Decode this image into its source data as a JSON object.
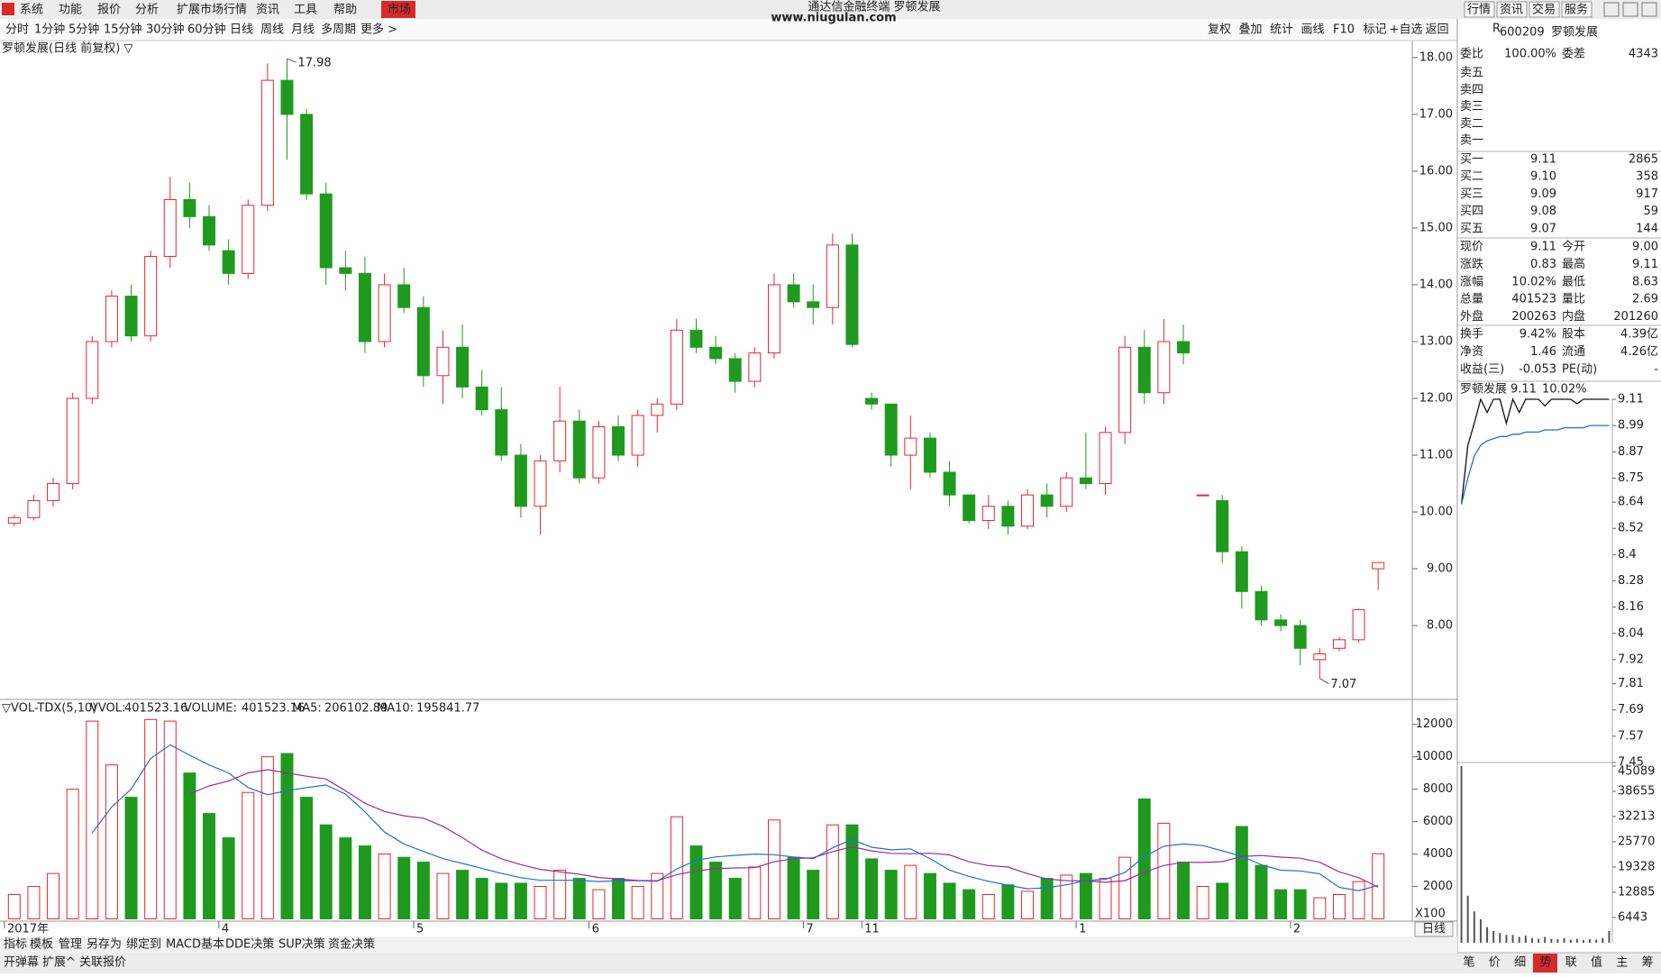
{
  "menu": {
    "items": [
      "系统",
      "功能",
      "报价",
      "分析",
      "扩展市场行情",
      "资讯",
      "工具",
      "帮助"
    ],
    "market": "市场",
    "app_title": "通达信金融终端 罗顿发展",
    "watermark": "www.niugulan.com",
    "right": [
      "行情",
      "资讯",
      "交易",
      "服务"
    ]
  },
  "toolbar": {
    "periods": [
      "分时",
      "1分钟",
      "5分钟",
      "15分钟",
      "30分钟",
      "60分钟",
      "日线",
      "周线",
      "月线",
      "多周期",
      "更多 >"
    ],
    "tools": [
      "复权",
      "叠加",
      "统计",
      "画线",
      "F10",
      "标记",
      "+自选",
      "返回"
    ]
  },
  "chart_data": [
    {
      "type": "candlestick",
      "title": "罗顿发展(日线 前复权) ▽",
      "up_color": "#e8262b",
      "down_color": "#1f9a1f",
      "categories": [
        "2017年",
        null,
        null,
        null,
        null,
        null,
        null,
        null,
        null,
        null,
        null,
        "4",
        null,
        null,
        null,
        null,
        null,
        null,
        null,
        null,
        null,
        "5",
        null,
        null,
        null,
        null,
        null,
        null,
        null,
        null,
        "6",
        null,
        null,
        null,
        null,
        null,
        null,
        null,
        null,
        null,
        null,
        "7",
        null,
        null,
        "11",
        null,
        null,
        null,
        null,
        null,
        null,
        null,
        null,
        null,
        null,
        "1",
        null,
        null,
        null,
        null,
        null,
        null,
        null,
        null,
        null,
        null,
        "2",
        null,
        null,
        null,
        null
      ],
      "candles": [
        [
          9.8,
          9.95,
          9.75,
          9.9
        ],
        [
          9.9,
          10.3,
          9.85,
          10.2
        ],
        [
          10.2,
          10.6,
          10.1,
          10.5
        ],
        [
          10.5,
          12.1,
          10.4,
          12.0
        ],
        [
          12.0,
          13.1,
          11.9,
          13.0
        ],
        [
          13.0,
          13.9,
          12.9,
          13.8
        ],
        [
          13.8,
          14.0,
          13.0,
          13.1
        ],
        [
          13.1,
          14.6,
          13.0,
          14.5
        ],
        [
          14.5,
          15.9,
          14.3,
          15.5
        ],
        [
          15.5,
          15.8,
          15.0,
          15.2
        ],
        [
          15.2,
          15.4,
          14.6,
          14.7
        ],
        [
          14.6,
          14.8,
          14.0,
          14.2
        ],
        [
          14.2,
          15.5,
          14.1,
          15.4
        ],
        [
          15.4,
          17.9,
          15.3,
          17.6
        ],
        [
          17.6,
          17.98,
          16.2,
          17.0
        ],
        [
          17.0,
          17.1,
          15.5,
          15.6
        ],
        [
          15.6,
          15.8,
          14.0,
          14.3
        ],
        [
          14.3,
          14.6,
          13.9,
          14.2
        ],
        [
          14.2,
          14.5,
          12.8,
          13.0
        ],
        [
          13.0,
          14.2,
          12.9,
          14.0
        ],
        [
          14.0,
          14.3,
          13.5,
          13.6
        ],
        [
          13.6,
          13.8,
          12.2,
          12.4
        ],
        [
          12.4,
          13.2,
          11.9,
          12.9
        ],
        [
          12.9,
          13.3,
          12.0,
          12.2
        ],
        [
          12.2,
          12.5,
          11.7,
          11.8
        ],
        [
          11.8,
          12.2,
          10.9,
          11.0
        ],
        [
          11.0,
          11.2,
          9.9,
          10.1
        ],
        [
          10.1,
          11.0,
          9.6,
          10.9
        ],
        [
          10.9,
          12.2,
          10.7,
          11.6
        ],
        [
          11.6,
          11.8,
          10.5,
          10.6
        ],
        [
          10.6,
          11.6,
          10.5,
          11.5
        ],
        [
          11.5,
          11.7,
          10.9,
          11.0
        ],
        [
          11.0,
          11.8,
          10.8,
          11.7
        ],
        [
          11.7,
          12.0,
          11.4,
          11.9
        ],
        [
          11.9,
          13.4,
          11.8,
          13.2
        ],
        [
          13.2,
          13.4,
          12.8,
          12.9
        ],
        [
          12.9,
          13.1,
          12.6,
          12.7
        ],
        [
          12.7,
          12.8,
          12.1,
          12.3
        ],
        [
          12.3,
          12.9,
          12.2,
          12.8
        ],
        [
          12.8,
          14.2,
          12.7,
          14.0
        ],
        [
          14.0,
          14.2,
          13.6,
          13.7
        ],
        [
          13.7,
          14.0,
          13.3,
          13.6
        ],
        [
          13.6,
          14.9,
          13.3,
          14.7
        ],
        [
          14.7,
          14.9,
          12.9,
          12.95
        ],
        [
          12.0,
          12.1,
          11.8,
          11.9
        ],
        [
          11.9,
          11.9,
          10.8,
          11.0
        ],
        [
          11.0,
          11.7,
          10.4,
          11.3
        ],
        [
          11.3,
          11.4,
          10.6,
          10.7
        ],
        [
          10.7,
          10.9,
          10.1,
          10.3
        ],
        [
          10.3,
          10.3,
          9.8,
          9.85
        ],
        [
          9.85,
          10.3,
          9.7,
          10.1
        ],
        [
          10.1,
          10.2,
          9.6,
          9.75
        ],
        [
          9.75,
          10.4,
          9.7,
          10.3
        ],
        [
          10.3,
          10.5,
          9.9,
          10.1
        ],
        [
          10.1,
          10.7,
          10.0,
          10.6
        ],
        [
          10.6,
          11.4,
          10.4,
          10.5
        ],
        [
          10.5,
          11.5,
          10.3,
          11.4
        ],
        [
          11.4,
          13.1,
          11.2,
          12.9
        ],
        [
          12.9,
          13.2,
          11.9,
          12.1
        ],
        [
          12.1,
          13.4,
          11.9,
          13.0
        ],
        [
          13.0,
          13.3,
          12.6,
          12.8
        ],
        [
          10.3,
          10.3,
          10.3,
          10.3
        ],
        [
          10.2,
          10.3,
          9.1,
          9.3
        ],
        [
          9.3,
          9.4,
          8.3,
          8.6
        ],
        [
          8.6,
          8.7,
          8.0,
          8.1
        ],
        [
          8.1,
          8.2,
          7.9,
          8.0
        ],
        [
          8.0,
          8.1,
          7.3,
          7.6
        ],
        [
          7.4,
          7.6,
          7.07,
          7.5
        ],
        [
          7.6,
          7.8,
          7.55,
          7.75
        ],
        [
          7.75,
          8.3,
          7.7,
          8.28
        ],
        [
          9.0,
          9.11,
          8.63,
          9.11
        ]
      ],
      "ylim": [
        6.7,
        18.3
      ],
      "yticks": [
        {
          "value": 8,
          "label": "8.00"
        },
        {
          "value": 9,
          "label": "9.00"
        },
        {
          "value": 10,
          "label": "10.00"
        },
        {
          "value": 11,
          "label": "11.00"
        },
        {
          "value": 12,
          "label": "12.00"
        },
        {
          "value": 13,
          "label": "13.00"
        },
        {
          "value": 14,
          "label": "14.00"
        },
        {
          "value": 15,
          "label": "15.00"
        },
        {
          "value": 16,
          "label": "16.00"
        },
        {
          "value": 17,
          "label": "17.00"
        },
        {
          "value": 18,
          "label": "18.00"
        }
      ]
    },
    {
      "type": "bar",
      "indicator": "▽VOL-TDX(5,10)",
      "vvol_label": "VVOL:",
      "vvol": 401523.16,
      "unit_label": "X100",
      "series": [
        {
          "name": "VOLUME:",
          "latest": 401523.16,
          "color": "#1f6fd6",
          "values": [
            1500,
            2000,
            2800,
            8000,
            12200,
            9500,
            7500,
            12300,
            12200,
            9000,
            6500,
            5000,
            7800,
            10000,
            10200,
            7500,
            5800,
            5000,
            4500,
            4000,
            3800,
            3500,
            2800,
            3000,
            2500,
            2200,
            2200,
            2000,
            3000,
            2500,
            1800,
            2500,
            2000,
            2800,
            6300,
            4500,
            3500,
            2500,
            3200,
            6100,
            3800,
            3000,
            5800,
            5800,
            3700,
            3000,
            3300,
            2800,
            2200,
            1800,
            1500,
            2100,
            1700,
            2500,
            2700,
            2800,
            2500,
            3800,
            7400,
            5900,
            3500,
            2000,
            2200,
            5700,
            3300,
            1800,
            1800,
            1300,
            1500,
            2300,
            4015
          ]
        },
        {
          "name": "MA5:",
          "latest": 206102.89,
          "color": "#1f6fd6",
          "values": [
            null,
            null,
            null,
            null,
            5300,
            6900,
            8000,
            9900,
            10740,
            10100,
            9500,
            9000,
            8100,
            7660,
            7900,
            8100,
            8260,
            7700,
            6600,
            5360,
            4620,
            4160,
            3720,
            3420,
            3120,
            2800,
            2540,
            2380,
            2380,
            2380,
            2300,
            2360,
            2360,
            2320,
            3080,
            3620,
            3820,
            3920,
            4000,
            3960,
            3820,
            3720,
            4380,
            4900,
            4420,
            4260,
            4320,
            3720,
            3000,
            2620,
            2320,
            2080,
            1860,
            1920,
            2100,
            2360,
            2440,
            2860,
            3840,
            4480,
            4620,
            4520,
            4200,
            3860,
            3340,
            3000,
            2960,
            2780,
            1940,
            1740,
            2061
          ]
        },
        {
          "name": "MA10:",
          "latest": 195841.77,
          "color": "#9b2d9b",
          "values": [
            null,
            null,
            null,
            null,
            null,
            null,
            null,
            null,
            null,
            7700,
            8200,
            8500,
            9000,
            9200,
            9000,
            8800,
            8630,
            7900,
            7130,
            6630,
            6360,
            6210,
            5710,
            5010,
            4240,
            3710,
            3350,
            3050,
            2900,
            2750,
            2550,
            2450,
            2370,
            2350,
            2730,
            2960,
            3090,
            3140,
            3160,
            3520,
            3720,
            3770,
            4150,
            4450,
            4190,
            4040,
            4020,
            4050,
            3950,
            3520,
            3290,
            3200,
            2790,
            2460,
            2360,
            2340,
            2260,
            2360,
            2880,
            3290,
            3490,
            3480,
            3530,
            3850,
            3910,
            3810,
            3740,
            3490,
            2900,
            2540,
            1958
          ]
        }
      ],
      "ylim": [
        0,
        13540
      ],
      "yticks": [
        2000,
        4000,
        6000,
        8000,
        10000,
        12000
      ]
    },
    {
      "type": "line",
      "title": "罗顿发展",
      "price": 9.11,
      "change": "10.02%",
      "series": [
        {
          "name": "price",
          "color": "#111111",
          "values": [
            8.63,
            8.9,
            9.0,
            9.11,
            9.05,
            9.11,
            9.11,
            9.0,
            9.11,
            9.05,
            9.11,
            9.11,
            9.11,
            9.08,
            9.11,
            9.11,
            9.11,
            9.11,
            9.09,
            9.11,
            9.11,
            9.11,
            9.11,
            9.11
          ]
        },
        {
          "name": "avg",
          "color": "#1f6fd6",
          "values": [
            8.63,
            8.75,
            8.85,
            8.9,
            8.92,
            8.93,
            8.94,
            8.94,
            8.95,
            8.95,
            8.96,
            8.96,
            8.96,
            8.97,
            8.97,
            8.97,
            8.98,
            8.98,
            8.98,
            8.98,
            8.99,
            8.99,
            8.99,
            8.99
          ]
        }
      ],
      "volumes": [
        45089,
        12000,
        8000,
        6000,
        4000,
        3000,
        2500,
        2000,
        2000,
        1500,
        1800,
        1200,
        1000,
        1500,
        1000,
        900,
        1200,
        800,
        1000,
        700,
        900,
        800,
        1200,
        3000
      ],
      "ylim": [
        7.45,
        9.11
      ],
      "yticks": [
        9.11,
        8.99,
        8.87,
        8.75,
        8.64,
        8.52,
        8.4,
        8.28,
        8.16,
        8.04,
        7.92,
        7.81,
        7.69,
        7.57,
        7.45
      ],
      "vol_ylim": [
        0,
        45089
      ],
      "vol_yticks": [
        45089,
        38655,
        32213,
        25770,
        19328,
        12885,
        6443
      ]
    }
  ],
  "quote": {
    "mark": "R",
    "code": "600209",
    "name": "罗顿发展",
    "ratio": [
      "委比",
      "100.00%",
      "委差",
      "4343"
    ],
    "asks": [
      "卖五",
      "卖四",
      "卖三",
      "卖二",
      "卖一"
    ],
    "bids": [
      [
        "买一",
        "9.11",
        "2865"
      ],
      [
        "买二",
        "9.10",
        "358"
      ],
      [
        "买三",
        "9.09",
        "917"
      ],
      [
        "买四",
        "9.08",
        "59"
      ],
      [
        "买五",
        "9.07",
        "144"
      ]
    ],
    "stats": [
      [
        "现价",
        "9.11",
        "今开",
        "9.00"
      ],
      [
        "涨跌",
        "0.83",
        "最高",
        "9.11"
      ],
      [
        "涨幅",
        "10.02%",
        "最低",
        "8.63"
      ],
      [
        "总量",
        "401523",
        "量比",
        "2.69"
      ],
      [
        "外盘",
        "200263",
        "内盘",
        "201260"
      ],
      [
        "换手",
        "9.42%",
        "股本",
        "4.39亿"
      ],
      [
        "净资",
        "1.46",
        "流通",
        "4.26亿"
      ],
      [
        "收益(三)",
        "-0.053",
        "PE(动)",
        "-"
      ]
    ]
  },
  "period_tag": "日线",
  "bottom": {
    "tabs": [
      "指标",
      "模板",
      "管理",
      "另存为",
      "绑定到",
      "MACD基本",
      "DDE决策",
      "SUP决策",
      "资金决策"
    ],
    "tabs2": [
      "开弹幕",
      "扩展^",
      "关联报价"
    ],
    "right_tabs": [
      "笔",
      "价",
      "细",
      "势",
      "联",
      "值",
      "主",
      "筹"
    ]
  }
}
